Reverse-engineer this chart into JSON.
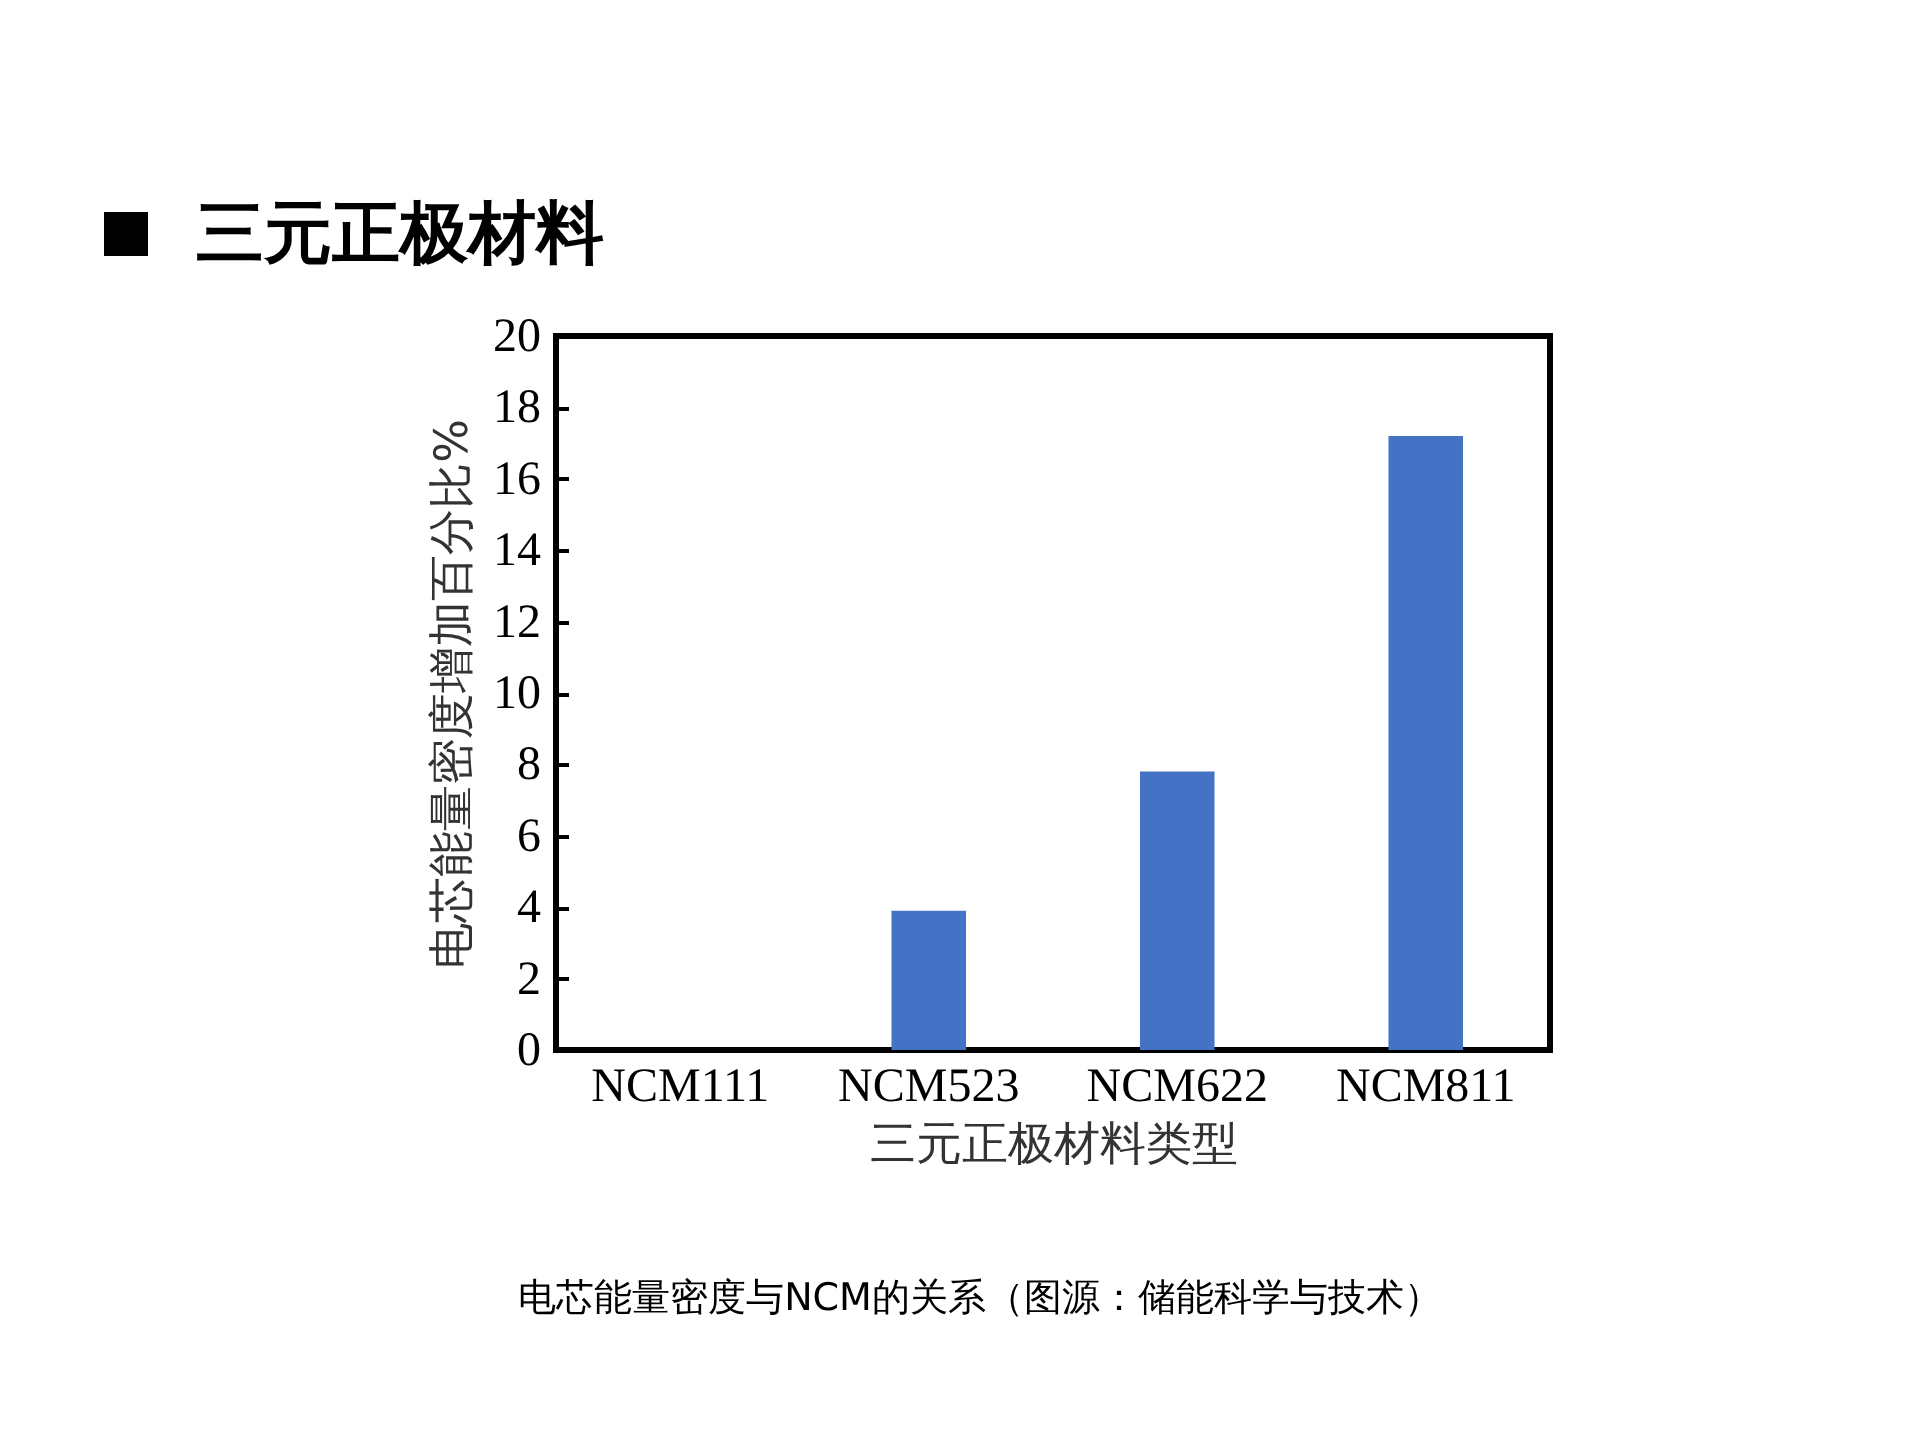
{
  "chart_data": {
    "type": "bar",
    "title": "三元正极材料",
    "categories": [
      "NCM111",
      "NCM523",
      "NCM622",
      "NCM811"
    ],
    "values": [
      0,
      3.9,
      7.8,
      17.2
    ],
    "color": "#4472c4",
    "xlabel": "三元正极材料类型",
    "ylabel": "电芯能量密度增加百分比%",
    "ylim": [
      0,
      20
    ],
    "yticks": [
      0,
      2,
      4,
      6,
      8,
      10,
      12,
      14,
      16,
      18,
      20
    ],
    "grid": false,
    "annotations": [
      "电芯能量密度与NCM的关系（图源：储能科学与技术）"
    ]
  }
}
